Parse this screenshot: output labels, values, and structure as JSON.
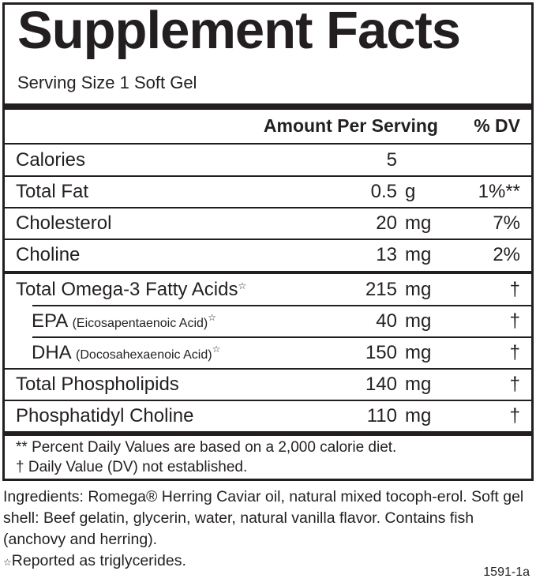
{
  "title": "Supplement Facts",
  "serving_size": "Serving Size 1 Soft Gel",
  "headers": {
    "amount": "Amount Per Serving",
    "dv": "% DV"
  },
  "rows": [
    {
      "name": "Calories",
      "amount": "5",
      "unit": "",
      "dv": ""
    },
    {
      "name": "Total Fat",
      "amount": "0.5",
      "unit": "g",
      "dv": "1%**"
    },
    {
      "name": "Cholesterol",
      "amount": "20",
      "unit": "mg",
      "dv": "7%"
    },
    {
      "name": "Choline",
      "amount": "13",
      "unit": "mg",
      "dv": "2%"
    },
    {
      "name": "Total Omega-3 Fatty Acids",
      "sub": "",
      "star": "☆",
      "amount": "215",
      "unit": "mg",
      "dv": "†"
    },
    {
      "name": "EPA",
      "sub": "(Eicosapentaenoic Acid)",
      "star": "☆",
      "amount": "40",
      "unit": "mg",
      "dv": "†"
    },
    {
      "name": "DHA",
      "sub": "(Docosahexaenoic Acid)",
      "star": "☆",
      "amount": "150",
      "unit": "mg",
      "dv": "†"
    },
    {
      "name": "Total Phospholipids",
      "amount": "140",
      "unit": "mg",
      "dv": "†"
    },
    {
      "name": "Phosphatidyl Choline",
      "amount": "110",
      "unit": "mg",
      "dv": "†"
    }
  ],
  "footnotes": [
    "** Percent Daily Values are based on a 2,000 calorie diet.",
    "† Daily Value (DV) not established."
  ],
  "ingredients": "Ingredients: Romega® Herring Caviar oil, natural mixed tocoph-erol. Soft gel shell: Beef gelatin, glycerin, water, natural vanilla flavor. Contains fish (anchovy and herring).",
  "triglyceride_note": {
    "star": "☆",
    "text": "Reported as triglycerides."
  },
  "code": "1591-1a"
}
